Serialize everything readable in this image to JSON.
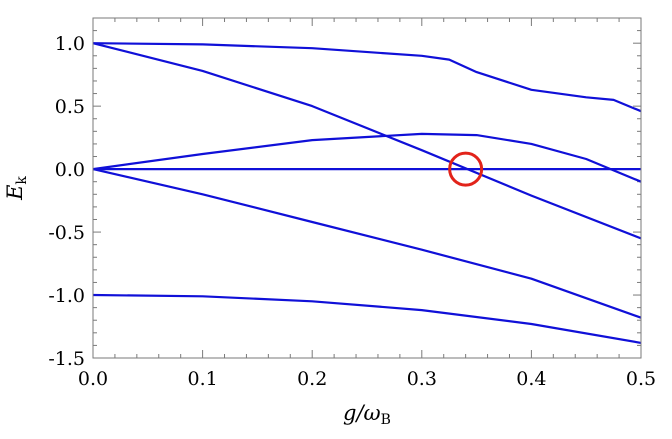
{
  "chart_data": {
    "type": "line",
    "xlabel": "g/ω",
    "xlabel_sub": "B",
    "ylabel": "E",
    "ylabel_sub": "k",
    "xlim": [
      0,
      0.5
    ],
    "ylim": [
      -1.5,
      1.2
    ],
    "x_ticks": [
      "0.0",
      "0.1",
      "0.2",
      "0.3",
      "0.4",
      "0.5"
    ],
    "y_ticks": [
      "1.0",
      "0.5",
      "0.0",
      "-0.5",
      "-1.0",
      "-1.5"
    ],
    "grid": false,
    "line_color": "#1010d8",
    "marker_color": "#e2231a",
    "series": [
      {
        "x": [
          0,
          0.1,
          0.2,
          0.3,
          0.325,
          0.35,
          0.4,
          0.45,
          0.475,
          0.5
        ],
        "y": [
          1.0,
          0.99,
          0.96,
          0.9,
          0.87,
          0.77,
          0.63,
          0.57,
          0.55,
          0.46
        ]
      },
      {
        "x": [
          0,
          0.1,
          0.2,
          0.3,
          0.4,
          0.5
        ],
        "y": [
          1.0,
          0.78,
          0.5,
          0.15,
          -0.21,
          -0.55
        ]
      },
      {
        "x": [
          0,
          0.1,
          0.2,
          0.3,
          0.35,
          0.4,
          0.45,
          0.5
        ],
        "y": [
          0.0,
          0.12,
          0.23,
          0.28,
          0.27,
          0.2,
          0.08,
          -0.1
        ]
      },
      {
        "x": [
          0,
          0.5
        ],
        "y": [
          0.0,
          0.0
        ]
      },
      {
        "x": [
          0,
          0.1,
          0.2,
          0.3,
          0.4,
          0.5
        ],
        "y": [
          0.0,
          -0.2,
          -0.42,
          -0.64,
          -0.87,
          -1.18
        ]
      },
      {
        "x": [
          0,
          0.1,
          0.2,
          0.3,
          0.4,
          0.5
        ],
        "y": [
          -1.0,
          -1.01,
          -1.05,
          -1.12,
          -1.23,
          -1.38
        ]
      }
    ],
    "annotations": [
      {
        "type": "circle",
        "x": 0.34,
        "y": 0.0
      }
    ]
  }
}
